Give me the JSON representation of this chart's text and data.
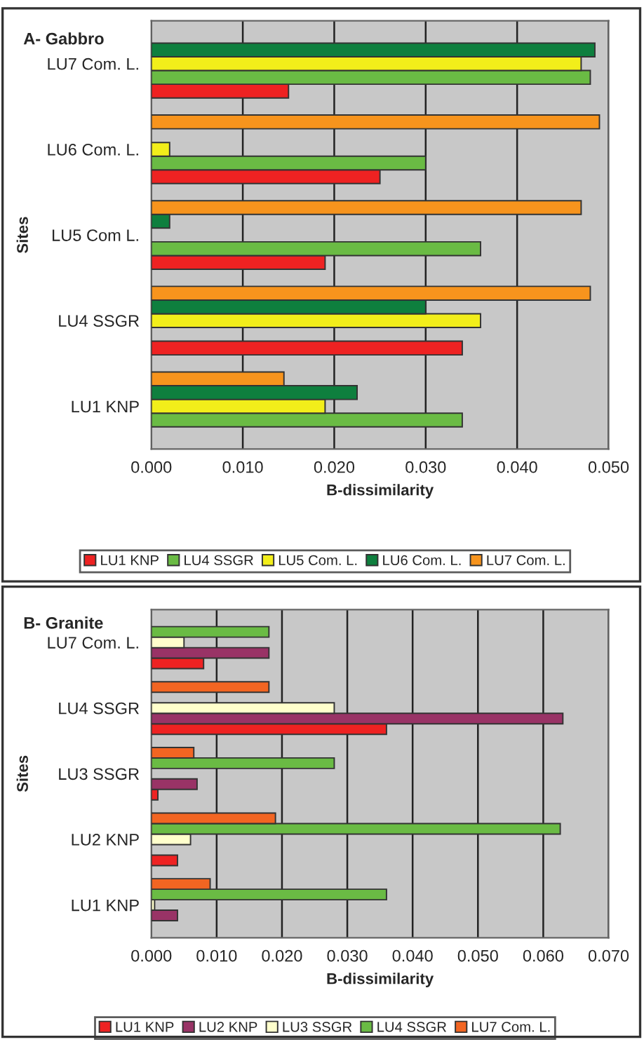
{
  "chart_data": [
    {
      "type": "bar",
      "orientation": "horizontal",
      "title": "A- Gabbro",
      "xlabel": "B-dissimilarity",
      "ylabel": "Sites",
      "categories": [
        "LU7 Com. L.",
        "LU6 Com. L.",
        "LU5 Com L.",
        "LU4 SSGR",
        "LU1 KNP"
      ],
      "series": [
        {
          "name": "LU1 KNP",
          "color": "#ee2222",
          "values": [
            0.015,
            0.025,
            0.019,
            0.034,
            null
          ]
        },
        {
          "name": "LU4 SSGR",
          "color": "#6abb44",
          "values": [
            0.048,
            0.03,
            0.036,
            null,
            0.034
          ]
        },
        {
          "name": "LU5 Com. L.",
          "color": "#f2ee1a",
          "values": [
            0.047,
            0.002,
            null,
            0.036,
            0.019
          ]
        },
        {
          "name": "LU6 Com. L.",
          "color": "#0e7f3e",
          "values": [
            0.0485,
            null,
            0.002,
            0.03,
            0.0225
          ]
        },
        {
          "name": "LU7 Com. L.",
          "color": "#f7941d",
          "values": [
            null,
            0.049,
            0.047,
            0.048,
            0.0145
          ]
        }
      ],
      "xlim": [
        0,
        0.05
      ],
      "xticks": [
        {
          "value": 0,
          "label": "0.000"
        },
        {
          "value": 0.01,
          "label": "0.010"
        },
        {
          "value": 0.02,
          "label": "0.020"
        },
        {
          "value": 0.03,
          "label": "0.030"
        },
        {
          "value": 0.04,
          "label": "0.040"
        },
        {
          "value": 0.05,
          "label": "0.050"
        }
      ],
      "grid": "x",
      "legend": "bottom"
    },
    {
      "type": "bar",
      "orientation": "horizontal",
      "title": "B- Granite",
      "xlabel": "B-dissimilarity",
      "ylabel": "Sites",
      "categories": [
        "LU7 Com. L.",
        "LU4 SSGR",
        "LU3 SSGR",
        "LU2 KNP",
        "LU1 KNP"
      ],
      "series": [
        {
          "name": "LU1 KNP",
          "color": "#ee2222",
          "values": [
            0.008,
            0.036,
            0.001,
            0.004,
            null
          ]
        },
        {
          "name": "LU2 KNP",
          "color": "#993366",
          "values": [
            0.018,
            0.063,
            0.007,
            null,
            0.004
          ]
        },
        {
          "name": "LU3 SSGR",
          "color": "#ffffcc",
          "values": [
            0.005,
            0.028,
            null,
            0.006,
            0.0005
          ]
        },
        {
          "name": "LU4 SSGR",
          "color": "#6abb44",
          "values": [
            0.018,
            null,
            0.028,
            0.0626,
            0.036
          ]
        },
        {
          "name": "LU7 Com. L.",
          "color": "#f26522",
          "values": [
            null,
            0.018,
            0.0065,
            0.019,
            0.009
          ]
        }
      ],
      "xlim": [
        0,
        0.07
      ],
      "xticks": [
        {
          "value": 0,
          "label": "0.000"
        },
        {
          "value": 0.01,
          "label": "0.010"
        },
        {
          "value": 0.02,
          "label": "0.020"
        },
        {
          "value": 0.03,
          "label": "0.030"
        },
        {
          "value": 0.04,
          "label": "0.040"
        },
        {
          "value": 0.05,
          "label": "0.050"
        },
        {
          "value": 0.06,
          "label": "0.060"
        },
        {
          "value": 0.07,
          "label": "0.070"
        }
      ],
      "grid": "x",
      "legend": "bottom"
    }
  ]
}
